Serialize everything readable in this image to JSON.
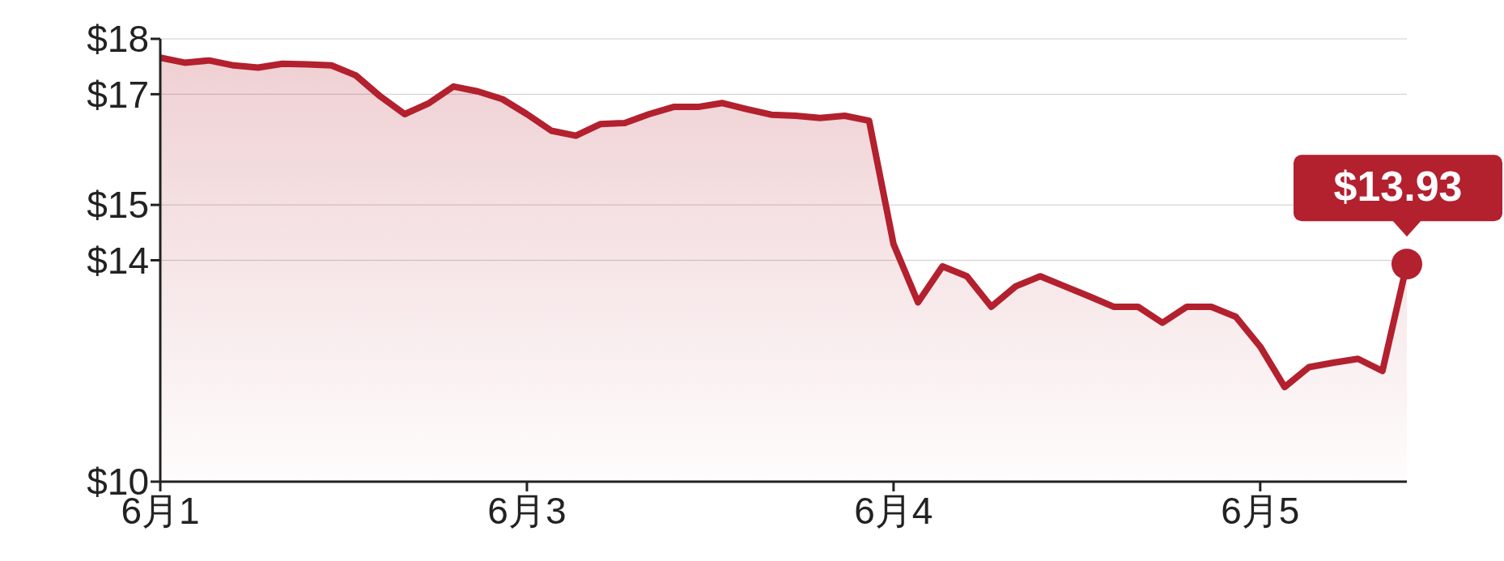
{
  "chart_data": {
    "type": "area",
    "categories": [
      "6月1",
      null,
      null,
      null,
      null,
      null,
      null,
      null,
      null,
      null,
      null,
      null,
      null,
      null,
      null,
      "6月3",
      null,
      null,
      null,
      null,
      null,
      null,
      null,
      null,
      null,
      null,
      null,
      null,
      null,
      null,
      "6月4",
      null,
      null,
      null,
      null,
      null,
      null,
      null,
      null,
      null,
      null,
      null,
      null,
      null,
      null,
      "6月5",
      null,
      null,
      null,
      null,
      null,
      null
    ],
    "series": [
      {
        "color": "#b3202e",
        "values": [
          17.66,
          17.57,
          17.61,
          17.52,
          17.48,
          17.55,
          17.54,
          17.52,
          17.34,
          16.96,
          16.64,
          16.84,
          17.14,
          17.05,
          16.91,
          16.64,
          16.34,
          16.25,
          16.46,
          16.48,
          16.64,
          16.77,
          16.77,
          16.84,
          16.73,
          16.63,
          16.61,
          16.57,
          16.61,
          16.52,
          14.29,
          13.24,
          13.89,
          13.71,
          13.16,
          13.53,
          13.71,
          13.53,
          13.35,
          13.16,
          13.16,
          12.87,
          13.16,
          13.16,
          12.98,
          12.44,
          11.71,
          12.07,
          12.15,
          12.22,
          12.0,
          13.93
        ]
      }
    ],
    "ylim": [
      10,
      18
    ],
    "yticks": [
      {
        "value": 10,
        "label": "$10"
      },
      {
        "value": 14,
        "label": "$14"
      },
      {
        "value": 15,
        "label": "$15"
      },
      {
        "value": 17,
        "label": "$17"
      },
      {
        "value": 18,
        "label": "$18"
      }
    ],
    "grid": "y",
    "annotations": [
      "$13.93"
    ]
  }
}
